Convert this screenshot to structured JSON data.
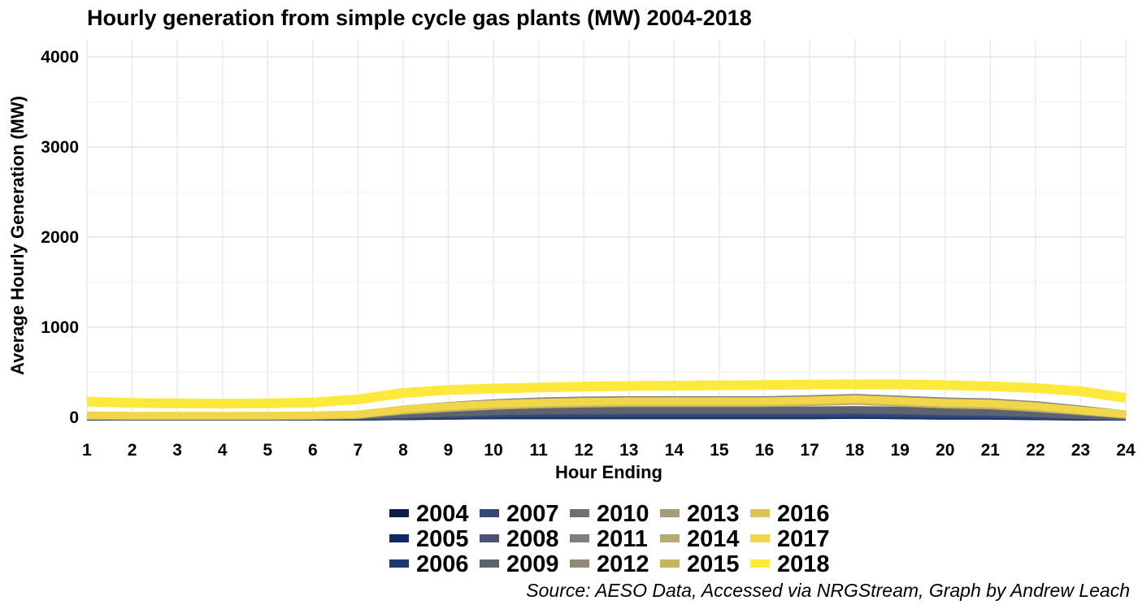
{
  "chart_data": {
    "type": "line",
    "title": "Hourly generation from simple cycle gas plants (MW) 2004-2018",
    "xlabel": "Hour Ending",
    "ylabel": "Average Hourly Generation (MW)",
    "caption": "Source: AESO Data, Accessed via NRGStream, Graph by Andrew Leach",
    "xlim": [
      1,
      24
    ],
    "ylim": [
      0,
      4200
    ],
    "x": [
      1,
      2,
      3,
      4,
      5,
      6,
      7,
      8,
      9,
      10,
      11,
      12,
      13,
      14,
      15,
      16,
      17,
      18,
      19,
      20,
      21,
      22,
      23,
      24
    ],
    "x_ticks": [
      "1",
      "2",
      "3",
      "4",
      "5",
      "6",
      "7",
      "8",
      "9",
      "10",
      "11",
      "12",
      "13",
      "14",
      "15",
      "16",
      "17",
      "18",
      "19",
      "20",
      "21",
      "22",
      "23",
      "24"
    ],
    "y_ticks": [
      "0",
      "1000",
      "2000",
      "3000",
      "4000"
    ],
    "grid": true,
    "legend_position": "bottom",
    "series": [
      {
        "name": "2004",
        "color": "#0b1f48",
        "values": [
          5,
          5,
          5,
          5,
          5,
          5,
          5,
          10,
          15,
          20,
          20,
          20,
          20,
          20,
          20,
          20,
          20,
          25,
          20,
          15,
          15,
          10,
          5,
          5
        ]
      },
      {
        "name": "2005",
        "color": "#0d2a66",
        "values": [
          5,
          5,
          5,
          5,
          5,
          5,
          5,
          10,
          15,
          20,
          20,
          20,
          20,
          20,
          20,
          20,
          20,
          25,
          20,
          15,
          15,
          10,
          5,
          5
        ]
      },
      {
        "name": "2006",
        "color": "#1a3a6e",
        "values": [
          5,
          5,
          5,
          5,
          5,
          5,
          5,
          12,
          18,
          22,
          25,
          25,
          25,
          25,
          25,
          25,
          25,
          30,
          25,
          20,
          18,
          12,
          8,
          5
        ]
      },
      {
        "name": "2007",
        "color": "#34467a",
        "values": [
          8,
          8,
          8,
          8,
          8,
          8,
          10,
          20,
          30,
          40,
          45,
          45,
          45,
          45,
          45,
          45,
          45,
          50,
          45,
          40,
          35,
          25,
          15,
          8
        ]
      },
      {
        "name": "2008",
        "color": "#4a5275",
        "values": [
          8,
          8,
          8,
          8,
          8,
          8,
          12,
          30,
          45,
          60,
          70,
          72,
          72,
          72,
          72,
          72,
          75,
          80,
          70,
          60,
          55,
          40,
          20,
          10
        ]
      },
      {
        "name": "2009",
        "color": "#5e6370",
        "values": [
          10,
          10,
          10,
          10,
          10,
          10,
          15,
          35,
          50,
          65,
          75,
          78,
          78,
          78,
          78,
          78,
          80,
          85,
          78,
          68,
          60,
          45,
          25,
          12
        ]
      },
      {
        "name": "2010",
        "color": "#6f7071",
        "values": [
          15,
          12,
          12,
          12,
          12,
          15,
          25,
          80,
          120,
          150,
          170,
          180,
          185,
          185,
          185,
          185,
          195,
          210,
          190,
          170,
          160,
          130,
          80,
          30
        ]
      },
      {
        "name": "2011",
        "color": "#7f7e7d",
        "values": [
          20,
          15,
          15,
          15,
          15,
          18,
          30,
          90,
          130,
          160,
          180,
          190,
          195,
          195,
          195,
          195,
          205,
          220,
          200,
          180,
          170,
          140,
          90,
          35
        ]
      },
      {
        "name": "2012",
        "color": "#8f8a78",
        "values": [
          18,
          15,
          15,
          15,
          15,
          18,
          28,
          85,
          125,
          155,
          175,
          185,
          190,
          190,
          190,
          190,
          200,
          215,
          195,
          175,
          165,
          135,
          85,
          32
        ]
      },
      {
        "name": "2013",
        "color": "#a59c78",
        "values": [
          15,
          12,
          12,
          12,
          12,
          15,
          25,
          75,
          110,
          135,
          150,
          160,
          165,
          165,
          165,
          165,
          175,
          190,
          170,
          150,
          140,
          110,
          70,
          28
        ]
      },
      {
        "name": "2014",
        "color": "#b5ab72",
        "values": [
          15,
          12,
          12,
          12,
          12,
          15,
          25,
          70,
          100,
          125,
          140,
          150,
          155,
          155,
          155,
          155,
          165,
          180,
          160,
          140,
          130,
          100,
          65,
          25
        ]
      },
      {
        "name": "2015",
        "color": "#c8b45e",
        "values": [
          18,
          15,
          15,
          15,
          15,
          18,
          28,
          80,
          110,
          135,
          150,
          160,
          165,
          165,
          165,
          165,
          175,
          190,
          170,
          150,
          140,
          110,
          70,
          30
        ]
      },
      {
        "name": "2016",
        "color": "#ddc255",
        "values": [
          20,
          18,
          18,
          18,
          18,
          20,
          30,
          85,
          115,
          140,
          155,
          165,
          170,
          170,
          170,
          170,
          180,
          195,
          175,
          155,
          145,
          115,
          75,
          32
        ]
      },
      {
        "name": "2017",
        "color": "#f0d648",
        "values": [
          25,
          20,
          20,
          20,
          20,
          25,
          35,
          90,
          125,
          150,
          165,
          175,
          180,
          180,
          180,
          180,
          190,
          205,
          185,
          165,
          155,
          125,
          80,
          35
        ]
      },
      {
        "name": "2018",
        "color": "#fde83c",
        "values": [
          175,
          160,
          155,
          152,
          155,
          165,
          200,
          270,
          305,
          320,
          332,
          342,
          348,
          352,
          356,
          358,
          364,
          366,
          366,
          358,
          345,
          325,
          290,
          215
        ]
      }
    ]
  }
}
